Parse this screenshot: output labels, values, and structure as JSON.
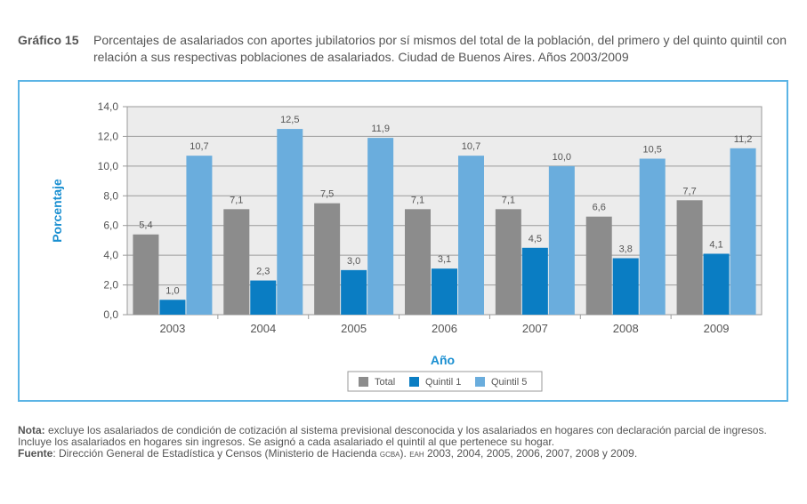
{
  "title": {
    "number": "Gráfico 15",
    "text": "Porcentajes de asalariados con aportes jubilatorios por sí mismos del total de la población, del primero y del quinto quintil con relación a sus respectivas poblaciones de asalariados. Ciudad de Buenos Aires. Años 2003/2009"
  },
  "colors": {
    "Total": "#8c8c8c",
    "Quintil 1": "#0a7dc3",
    "Quintil 5": "#6aaddd",
    "frame": "#5bb4e5",
    "plot_bg": "#ececec",
    "axis_title": "#1a8fd1"
  },
  "chart_data": {
    "type": "bar",
    "title": "",
    "xlabel": "Año",
    "ylabel": "Porcentaje",
    "ylim": [
      0,
      14
    ],
    "yticks": [
      "0,0",
      "2,0",
      "4,0",
      "6,0",
      "8,0",
      "10,0",
      "12,0",
      "14,0"
    ],
    "categories": [
      "2003",
      "2004",
      "2005",
      "2006",
      "2007",
      "2008",
      "2009"
    ],
    "series": [
      {
        "name": "Total",
        "values": [
          5.4,
          7.1,
          7.5,
          7.1,
          7.1,
          6.6,
          7.7
        ],
        "labels": [
          "5,4",
          "7,1",
          "7,5",
          "7,1",
          "7,1",
          "6,6",
          "7,7"
        ]
      },
      {
        "name": "Quintil 1",
        "values": [
          1.0,
          2.3,
          3.0,
          3.1,
          4.5,
          3.8,
          4.1
        ],
        "labels": [
          "1,0",
          "2,3",
          "3,0",
          "3,1",
          "4,5",
          "3,8",
          "4,1"
        ]
      },
      {
        "name": "Quintil 5",
        "values": [
          10.7,
          12.5,
          11.9,
          10.7,
          10.0,
          10.5,
          11.2
        ],
        "labels": [
          "10,7",
          "12,5",
          "11,9",
          "10,7",
          "10,0",
          "10,5",
          "11,2"
        ]
      }
    ],
    "legend": [
      "Total",
      "Quintil 1",
      "Quintil 5"
    ],
    "legend_position": "bottom-center",
    "grid": true
  },
  "notes": {
    "nota_label": "Nota:",
    "nota_text": " excluye los asalariados de condición de cotización al sistema previsional desconocida y los asalariados en hogares con declaración parcial de ingresos. Incluye los asalariados en hogares sin ingresos. Se asignó a cada asalariado el quintil al que pertenece su hogar.",
    "fuente_label": "Fuente",
    "fuente_text_1": ": Dirección General de Estadística y Censos (Ministerio de Hacienda ",
    "fuente_gcba": "GCBA",
    "fuente_text_2": "). ",
    "fuente_eah": "EAH",
    "fuente_text_3": " 2003, 2004, 2005, 2006, 2007, 2008 y 2009."
  }
}
